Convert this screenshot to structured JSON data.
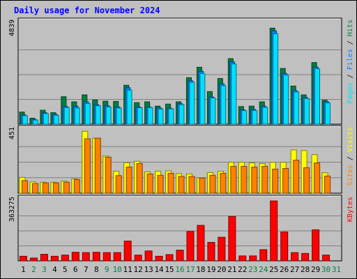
{
  "chart_data": [
    {
      "type": "bar",
      "title": "Daily usage for November 2024",
      "ylabel_parts": [
        "Pages",
        "Files",
        "Hits"
      ],
      "ymax_label": "4839",
      "categories": [
        "1",
        "2",
        "3",
        "4",
        "5",
        "6",
        "7",
        "8",
        "9",
        "10",
        "11",
        "12",
        "13",
        "14",
        "15",
        "16",
        "17",
        "18",
        "19",
        "20",
        "21",
        "22",
        "23",
        "24",
        "25",
        "26",
        "27",
        "28",
        "29",
        "30",
        "31"
      ],
      "weekend_days": [
        "2",
        "3",
        "9",
        "10",
        "16",
        "17",
        "23",
        "24",
        "30",
        "31"
      ],
      "ylim": [
        0,
        4839
      ],
      "series": [
        {
          "name": "Hits",
          "color": "#008040",
          "values": [
            590,
            290,
            680,
            560,
            1340,
            1090,
            1430,
            1180,
            1120,
            1110,
            1900,
            1050,
            1090,
            880,
            980,
            1090,
            2270,
            2780,
            1590,
            2230,
            3200,
            860,
            880,
            1090,
            4690,
            2720,
            1860,
            1430,
            3010,
            1170,
            0
          ]
        },
        {
          "name": "Files",
          "color": "#0080ff",
          "values": [
            450,
            230,
            560,
            480,
            870,
            880,
            1090,
            950,
            900,
            840,
            1780,
            840,
            840,
            790,
            780,
            1000,
            2120,
            2580,
            1330,
            1970,
            3040,
            700,
            720,
            880,
            4560,
            2480,
            1640,
            1300,
            2790,
            1100,
            0
          ]
        },
        {
          "name": "Pages",
          "color": "#00e0ff",
          "values": [
            410,
            200,
            520,
            430,
            810,
            790,
            1010,
            900,
            840,
            790,
            1660,
            800,
            810,
            740,
            750,
            950,
            2050,
            2480,
            1280,
            1880,
            2940,
            660,
            670,
            820,
            4420,
            2400,
            1570,
            1250,
            2710,
            1040,
            0
          ]
        }
      ]
    },
    {
      "type": "bar",
      "ylabel_parts": [
        "Sites",
        "Visits"
      ],
      "ymax_label": "451",
      "categories": [
        "1",
        "2",
        "3",
        "4",
        "5",
        "6",
        "7",
        "8",
        "9",
        "10",
        "11",
        "12",
        "13",
        "14",
        "15",
        "16",
        "17",
        "18",
        "19",
        "20",
        "21",
        "22",
        "23",
        "24",
        "25",
        "26",
        "27",
        "28",
        "29",
        "30",
        "31"
      ],
      "ylim": [
        0,
        451
      ],
      "series": [
        {
          "name": "Visits",
          "color": "#ffff00",
          "values": [
            115,
            82,
            80,
            80,
            88,
            105,
            450,
            400,
            270,
            160,
            222,
            232,
            155,
            160,
            162,
            142,
            140,
            112,
            150,
            160,
            225,
            225,
            220,
            215,
            225,
            225,
            315,
            310,
            280,
            148,
            0
          ]
        },
        {
          "name": "Sites",
          "color": "#ff8000",
          "values": [
            92,
            70,
            75,
            75,
            80,
            100,
            395,
            400,
            262,
            128,
            190,
            215,
            140,
            130,
            145,
            122,
            122,
            110,
            130,
            145,
            195,
            195,
            190,
            195,
            175,
            180,
            240,
            185,
            220,
            125,
            0
          ]
        }
      ]
    },
    {
      "type": "bar",
      "ylabel_parts": [
        "KBytes"
      ],
      "ymax_label": "363275",
      "categories": [
        "1",
        "2",
        "3",
        "4",
        "5",
        "6",
        "7",
        "8",
        "9",
        "10",
        "11",
        "12",
        "13",
        "14",
        "15",
        "16",
        "17",
        "18",
        "19",
        "20",
        "21",
        "22",
        "23",
        "24",
        "25",
        "26",
        "27",
        "28",
        "29",
        "30",
        "31"
      ],
      "ylim": [
        0,
        363275
      ],
      "series": [
        {
          "name": "KBytes",
          "color": "#ff0000",
          "values": [
            28000,
            17000,
            40000,
            28000,
            35000,
            52000,
            50000,
            52000,
            50000,
            50000,
            120000,
            35000,
            60000,
            28000,
            38000,
            65000,
            178000,
            215000,
            112000,
            143000,
            268000,
            30000,
            30000,
            68000,
            363000,
            175000,
            50000,
            45000,
            188000,
            35000,
            0
          ]
        }
      ]
    }
  ]
}
